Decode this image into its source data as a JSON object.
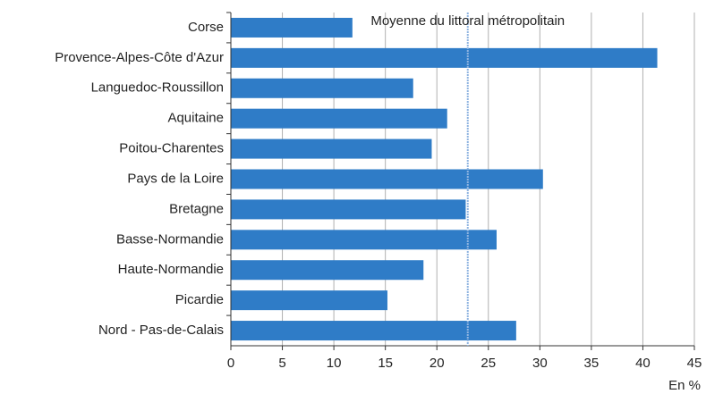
{
  "chart_data": {
    "type": "hbar",
    "categories": [
      "Corse",
      "Provence-Alpes-Côte d'Azur",
      "Languedoc-Roussillon",
      "Aquitaine",
      "Poitou-Charentes",
      "Pays de la Loire",
      "Bretagne",
      "Basse-Normandie",
      "Haute-Normandie",
      "Picardie",
      "Nord - Pas-de-Calais"
    ],
    "values": [
      11.8,
      41.4,
      17.7,
      21.0,
      19.5,
      30.3,
      22.8,
      25.8,
      18.7,
      15.2,
      27.7
    ],
    "color": "#2f7cc7",
    "xlim": [
      0,
      45
    ],
    "xticks": [
      0,
      5,
      10,
      15,
      20,
      25,
      30,
      35,
      40,
      45
    ],
    "grid": true,
    "x_label": "En %",
    "reference": {
      "value": 23.0,
      "label": "Moyenne du littoral métropolitain",
      "color": "#8fb4e0"
    }
  }
}
